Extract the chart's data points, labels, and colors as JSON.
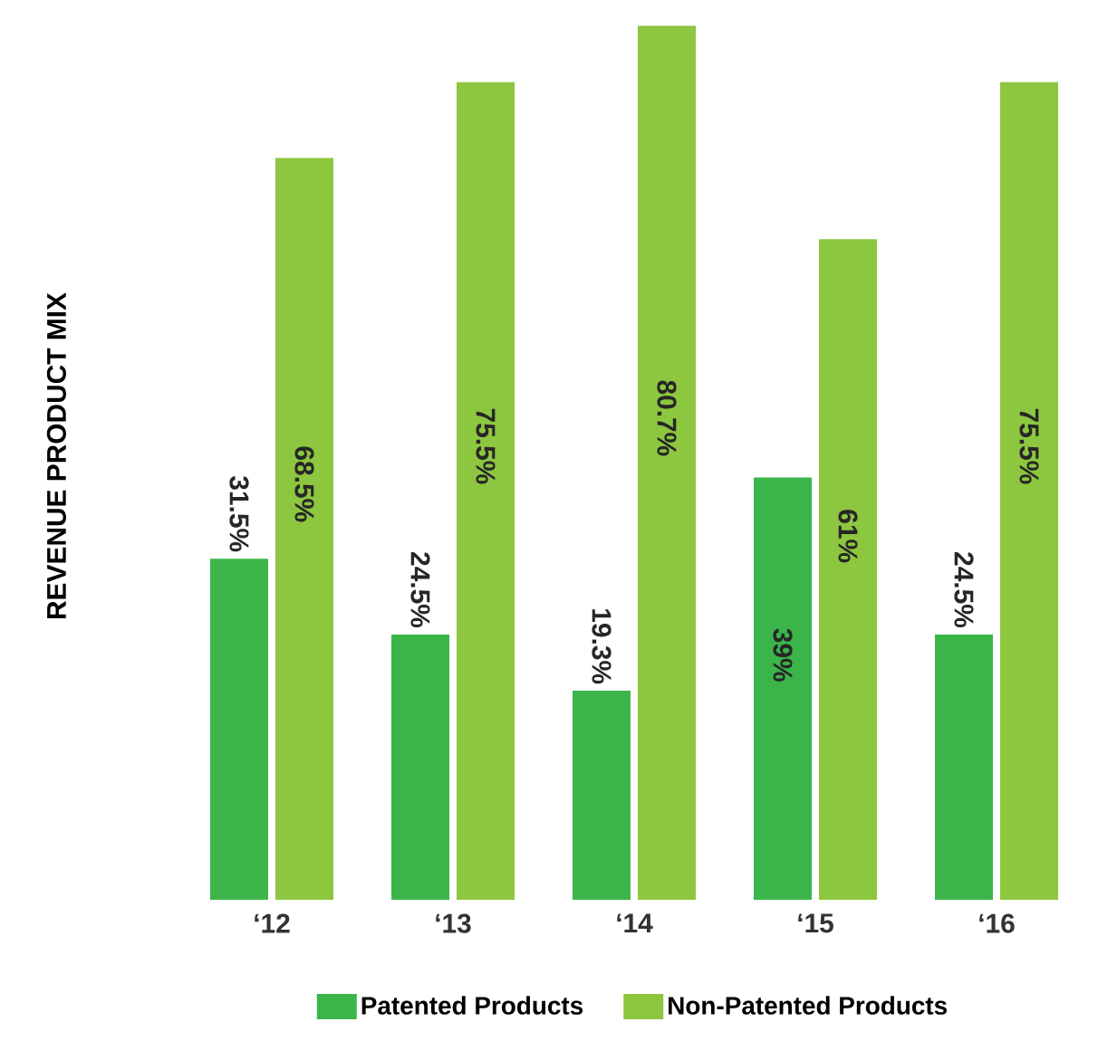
{
  "chart_data": {
    "type": "bar",
    "ylabel": "REVENUE PRODUCT MIX",
    "categories": [
      "‘12",
      "‘13",
      "‘14",
      "‘15",
      "‘16"
    ],
    "series": [
      {
        "name": "Patented Products",
        "color": "#3bb54a",
        "values": [
          31.5,
          24.5,
          19.3,
          39,
          24.5
        ],
        "value_labels": [
          "31.5%",
          "24.5%",
          "19.3%",
          "39%",
          "24.5%"
        ]
      },
      {
        "name": "Non-Patented Products",
        "color": "#8dc63f",
        "values": [
          68.5,
          75.5,
          80.7,
          61,
          75.5
        ],
        "value_labels": [
          "68.5%",
          "75.5%",
          "80.7%",
          "61%",
          "75.5%"
        ]
      }
    ],
    "legend": "bottom"
  }
}
